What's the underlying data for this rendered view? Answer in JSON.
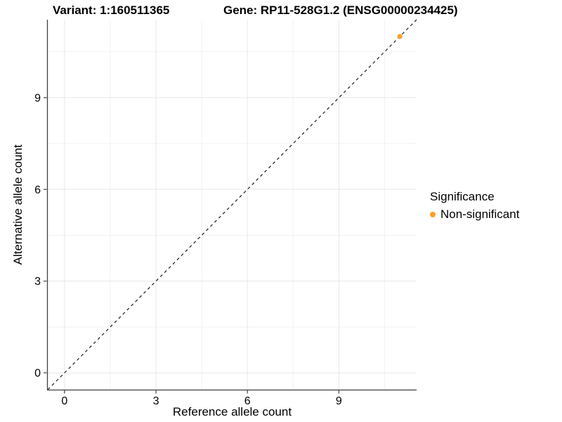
{
  "header": {
    "variant_title": "Variant: 1:160511365",
    "gene_title": "Gene: RP11-528G1.2 (ENSG00000234425)"
  },
  "chart_data": {
    "type": "scatter",
    "x": {
      "label": "Reference allele count",
      "ticks": [
        0,
        3,
        6,
        9
      ],
      "tick_labels": [
        "0",
        "3",
        "6",
        "9"
      ],
      "minor_ticks": [
        1.5,
        4.5,
        7.5,
        10.5
      ],
      "range": [
        -0.55,
        11.55
      ]
    },
    "y": {
      "label": "Alternative allele count",
      "ticks": [
        0,
        3,
        6,
        9
      ],
      "tick_labels": [
        "0",
        "3",
        "6",
        "9"
      ],
      "minor_ticks": [
        1.5,
        4.5,
        7.5,
        10.5
      ],
      "range": [
        -0.55,
        11.55
      ]
    },
    "series": [
      {
        "name": "Non-significant",
        "color": "#F9A02C",
        "points": [
          {
            "x": 11,
            "y": 11
          }
        ]
      }
    ],
    "reference_line": {
      "type": "identity",
      "slope": 1,
      "intercept": 0,
      "style": "dashed",
      "color": "#1a1a1a"
    },
    "legend": {
      "title": "Significance",
      "position": "right",
      "entries": [
        {
          "label": "Non-significant",
          "color": "#F9A02C"
        }
      ]
    },
    "style": {
      "background": "#FFFFFF",
      "grid_major_color": "#E7E7E7",
      "grid_minor_color": "#F2F2F2",
      "axis_color": "#404040",
      "grid": true
    }
  }
}
